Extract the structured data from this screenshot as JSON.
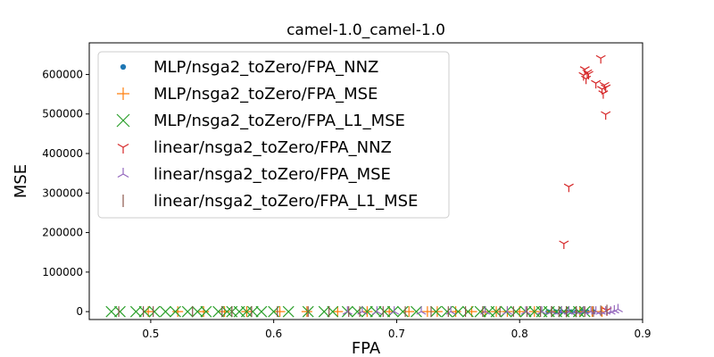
{
  "chart_data": {
    "type": "scatter",
    "title": "camel-1.0_camel-1.0",
    "xlabel": "FPA",
    "ylabel": "MSE",
    "xlim": [
      0.45,
      0.9
    ],
    "ylim": [
      -20000,
      680000
    ],
    "xticks": [
      "0.5",
      "0.6",
      "0.7",
      "0.8",
      "0.9"
    ],
    "xtick_values": [
      0.5,
      0.6,
      0.7,
      0.8,
      0.9
    ],
    "yticks": [
      "0",
      "100000",
      "200000",
      "300000",
      "400000",
      "500000",
      "600000"
    ],
    "ytick_values": [
      0,
      100000,
      200000,
      300000,
      400000,
      500000,
      600000
    ],
    "grid": false,
    "legend_position": "top-left",
    "series": [
      {
        "name": "MLP/nsga2_toZero/FPA_NNZ",
        "marker": "dot",
        "color": "#1f77b4",
        "x": [
          0.823,
          0.829,
          0.834,
          0.838,
          0.842,
          0.846,
          0.851,
          0.855,
          0.86
        ],
        "y": [
          0,
          0,
          0,
          0,
          0,
          0,
          0,
          0,
          0
        ]
      },
      {
        "name": "MLP/nsga2_toZero/FPA_MSE",
        "marker": "plus",
        "color": "#ff7f0e",
        "x": [
          0.498,
          0.522,
          0.543,
          0.56,
          0.578,
          0.605,
          0.627,
          0.652,
          0.676,
          0.694,
          0.71,
          0.725,
          0.733,
          0.748,
          0.761,
          0.772,
          0.781,
          0.79,
          0.8,
          0.812,
          0.826,
          0.838,
          0.849,
          0.859,
          0.867
        ],
        "y": [
          0,
          0,
          0,
          0,
          0,
          0,
          0,
          0,
          0,
          0,
          0,
          0,
          0,
          0,
          0,
          0,
          0,
          0,
          0,
          0,
          0,
          0,
          0,
          0,
          0
        ]
      },
      {
        "name": "MLP/nsga2_toZero/FPA_L1_MSE",
        "marker": "x",
        "color": "#2ca02c",
        "x": [
          0.468,
          0.475,
          0.488,
          0.495,
          0.503,
          0.512,
          0.52,
          0.53,
          0.538,
          0.545,
          0.555,
          0.562,
          0.566,
          0.572,
          0.578,
          0.583,
          0.59,
          0.6,
          0.612,
          0.628,
          0.641,
          0.648,
          0.66,
          0.668,
          0.676,
          0.683,
          0.69,
          0.697,
          0.705,
          0.716,
          0.732,
          0.741,
          0.75,
          0.758,
          0.768,
          0.775,
          0.781,
          0.789,
          0.797,
          0.805,
          0.812,
          0.818,
          0.824,
          0.83,
          0.836,
          0.842,
          0.848,
          0.853
        ],
        "y": [
          0,
          0,
          0,
          0,
          0,
          0,
          0,
          0,
          0,
          0,
          0,
          0,
          0,
          0,
          0,
          0,
          0,
          0,
          0,
          0,
          0,
          0,
          0,
          0,
          0,
          0,
          0,
          0,
          0,
          0,
          0,
          0,
          0,
          0,
          0,
          0,
          0,
          0,
          0,
          0,
          0,
          0,
          0,
          0,
          0,
          0,
          0,
          0
        ]
      },
      {
        "name": "linear/nsga2_toZero/FPA_NNZ",
        "marker": "tri_down",
        "color": "#d62728",
        "x": [
          0.836,
          0.84,
          0.853,
          0.855,
          0.852,
          0.856,
          0.854,
          0.862,
          0.866,
          0.868,
          0.869,
          0.87,
          0.867,
          0.87,
          0.871
        ],
        "y": [
          172000,
          316000,
          613000,
          605000,
          598000,
          601000,
          589000,
          578000,
          641000,
          552000,
          573000,
          567000,
          563000,
          499000,
          3000
        ]
      },
      {
        "name": "linear/nsga2_toZero/FPA_MSE",
        "marker": "tri_up",
        "color": "#9467bd",
        "x": [
          0.66,
          0.672,
          0.684,
          0.698,
          0.72,
          0.744,
          0.772,
          0.79,
          0.805,
          0.818,
          0.826,
          0.834,
          0.84,
          0.846,
          0.852,
          0.858,
          0.862,
          0.866,
          0.87,
          0.874,
          0.877,
          0.88
        ],
        "y": [
          0,
          0,
          0,
          0,
          0,
          0,
          0,
          0,
          0,
          0,
          0,
          0,
          0,
          0,
          0,
          0,
          0,
          0,
          0,
          0,
          3000,
          6000
        ]
      },
      {
        "name": "linear/nsga2_toZero/FPA_L1_MSE",
        "marker": "vline",
        "color": "#8c564b",
        "x": [
          0.474,
          0.494,
          0.502,
          0.534,
          0.558,
          0.566,
          0.582,
          0.603,
          0.628,
          0.645,
          0.661,
          0.67,
          0.689,
          0.707,
          0.728,
          0.742,
          0.756,
          0.77,
          0.784,
          0.795,
          0.806,
          0.817,
          0.826,
          0.832,
          0.838,
          0.846,
          0.853,
          0.86,
          0.866,
          0.871
        ],
        "y": [
          0,
          0,
          0,
          0,
          0,
          0,
          0,
          0,
          0,
          0,
          0,
          0,
          0,
          0,
          0,
          0,
          0,
          0,
          0,
          0,
          0,
          0,
          0,
          0,
          0,
          0,
          0,
          0,
          2000,
          4000
        ]
      }
    ]
  }
}
